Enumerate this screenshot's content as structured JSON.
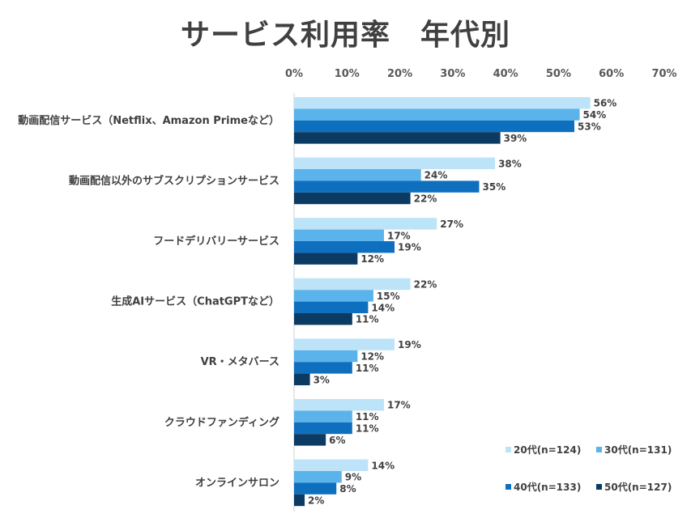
{
  "chart_data": {
    "type": "bar",
    "orientation": "horizontal",
    "title": "サービス利用率　年代別",
    "xlim": [
      0,
      70
    ],
    "x_ticks": [
      "0%",
      "10%",
      "20%",
      "30%",
      "40%",
      "50%",
      "60%",
      "70%"
    ],
    "grid": false,
    "legend_position": "bottom-right",
    "categories": [
      "動画配信サービス（Netflix、Amazon Primeなど）",
      "動画配信以外のサブスクリプションサービス",
      "フードデリバリーサービス",
      "生成AIサービス（ChatGPTなど）",
      "VR・メタバース",
      "クラウドファンディング",
      "オンラインサロン"
    ],
    "series": [
      {
        "name": "20代(n=124)",
        "color": "#bde3f8",
        "values": [
          56,
          38,
          27,
          22,
          19,
          17,
          14
        ]
      },
      {
        "name": "30代(n=131)",
        "color": "#5ab3ea",
        "values": [
          54,
          24,
          17,
          15,
          12,
          11,
          9
        ]
      },
      {
        "name": "40代(n=133)",
        "color": "#0f6fbf",
        "values": [
          53,
          35,
          19,
          14,
          11,
          11,
          8
        ]
      },
      {
        "name": "50代(n=127)",
        "color": "#0b3a63",
        "values": [
          39,
          22,
          12,
          11,
          3,
          6,
          2
        ]
      }
    ],
    "value_suffix": "%"
  }
}
